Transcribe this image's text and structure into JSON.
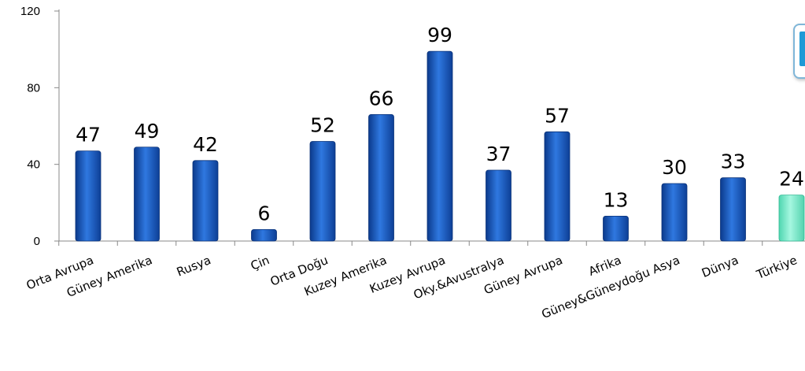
{
  "chart_data": {
    "type": "bar",
    "categories": [
      "Orta Avrupa",
      "Güney Amerika",
      "Rusya",
      "Çin",
      "Orta Doğu",
      "Kuzey Amerika",
      "Kuzey Avrupa",
      "Oky.&Avustralya",
      "Güney Avrupa",
      "Afrika",
      "Güney&Güneydoğu Asya",
      "Dünya",
      "Türkiye"
    ],
    "values": [
      47,
      49,
      42,
      6,
      52,
      66,
      99,
      37,
      57,
      13,
      30,
      33,
      24
    ],
    "data_labels": [
      "47",
      "49",
      "42",
      "6",
      "52",
      "66",
      "99",
      "37",
      "57",
      "13",
      "30",
      "33",
      "24"
    ],
    "yticks": [
      0,
      40,
      80,
      120
    ],
    "ytick_labels": [
      "0",
      "40",
      "80",
      "120"
    ],
    "ylim": [
      0,
      120
    ],
    "title": "",
    "xlabel": "",
    "ylabel": "",
    "grid": false,
    "colors": {
      "bar_default": "#1a5fc8",
      "bar_dark": "#0b3a8c",
      "bar_light": "#4a8ae8",
      "bar_highlight": "#7ff0d0",
      "highlight_index": 12
    }
  },
  "corner_widget": {
    "icon": "panel-icon",
    "color": "#1d9ad6"
  }
}
